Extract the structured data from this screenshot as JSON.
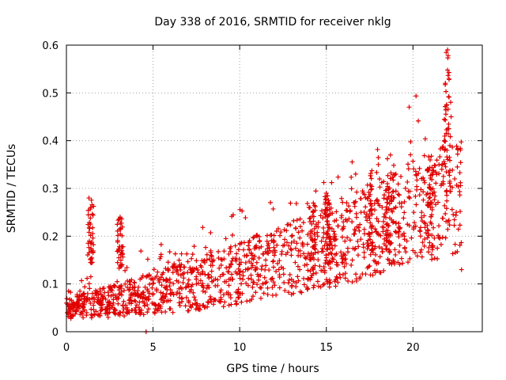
{
  "chart_data": {
    "type": "scatter",
    "title": "Day 338 of 2016, SRMTID for receiver nklg",
    "xlabel": "GPS time / hours",
    "ylabel": "SRMTID / TECUs",
    "xlim": [
      0,
      24
    ],
    "ylim": [
      0,
      0.6
    ],
    "xticks": [
      0,
      5,
      10,
      15,
      20
    ],
    "xtick_labels": [
      "0",
      "5",
      "10",
      "15",
      "20"
    ],
    "yticks": [
      0,
      0.1,
      0.2,
      0.3,
      0.4,
      0.5,
      0.6
    ],
    "ytick_labels": [
      "0",
      "0.1",
      "0.2",
      "0.3",
      "0.4",
      "0.5",
      "0.6"
    ],
    "grid": true,
    "marker": "+",
    "color": "#e00000",
    "series": [
      {
        "name": "SRMTID",
        "description": "dense point cloud; representative envelope values",
        "x": [
          0.0,
          0.5,
          1.0,
          1.3,
          1.4,
          1.5,
          2.0,
          2.5,
          3.0,
          3.1,
          3.2,
          3.5,
          4.0,
          4.5,
          4.6,
          5.0,
          5.5,
          6.0,
          6.5,
          7.0,
          7.5,
          8.0,
          8.5,
          9.0,
          9.5,
          10.0,
          10.5,
          11.0,
          11.5,
          12.0,
          12.5,
          13.0,
          13.5,
          14.0,
          14.5,
          15.0,
          15.5,
          16.0,
          16.5,
          17.0,
          17.5,
          18.0,
          18.5,
          18.7,
          19.0,
          19.5,
          20.0,
          20.5,
          21.0,
          21.5,
          21.8,
          22.0,
          22.2,
          22.5,
          22.8
        ],
        "y": [
          0.06,
          0.05,
          0.06,
          0.28,
          0.26,
          0.08,
          0.05,
          0.06,
          0.07,
          0.24,
          0.17,
          0.05,
          0.05,
          0.06,
          0.0,
          0.08,
          0.07,
          0.08,
          0.09,
          0.1,
          0.1,
          0.12,
          0.15,
          0.12,
          0.14,
          0.12,
          0.18,
          0.2,
          0.15,
          0.16,
          0.18,
          0.2,
          0.22,
          0.26,
          0.2,
          0.29,
          0.2,
          0.22,
          0.15,
          0.25,
          0.2,
          0.35,
          0.25,
          0.37,
          0.26,
          0.2,
          0.17,
          0.25,
          0.3,
          0.35,
          0.4,
          0.59,
          0.45,
          0.25,
          0.13
        ]
      }
    ]
  }
}
